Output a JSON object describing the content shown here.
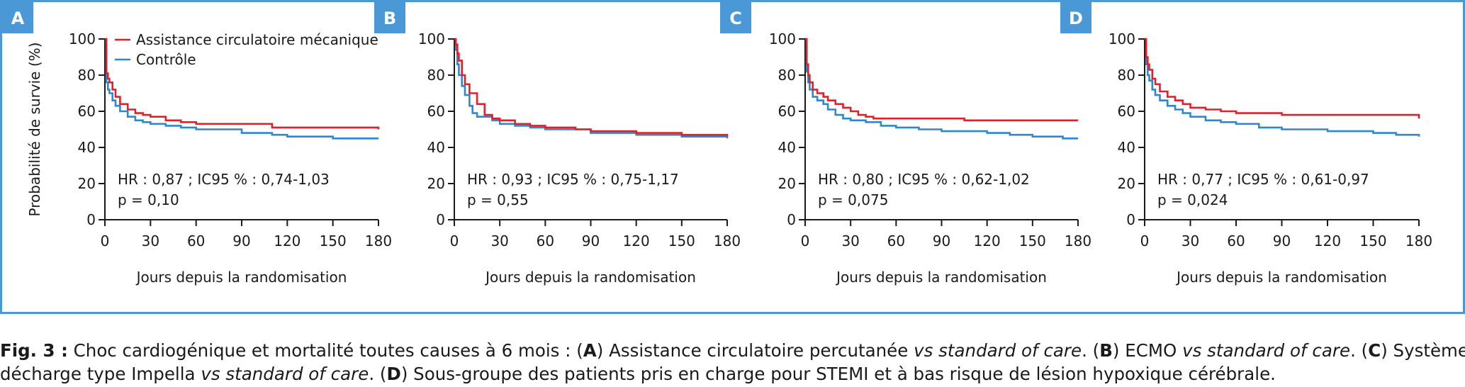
{
  "figure": {
    "frame_color": "#4a98d6",
    "colors": {
      "treatment": "#e1202a",
      "control": "#2e88cf",
      "letter_bg": "#4a98d6"
    }
  },
  "legend": {
    "treatment": "Assistance circulatoire mécanique",
    "control": "Contrôle"
  },
  "caption": {
    "fig_label": "Fig. 3 :",
    "line1_parts": [
      {
        "t": " Choc cardiogénique et mortalité toutes causes à 6 mois : (",
        "s": "n"
      },
      {
        "t": "A",
        "s": "b"
      },
      {
        "t": ") Assistance circulatoire percutanée ",
        "s": "n"
      },
      {
        "t": "vs standard of care",
        "s": "i"
      },
      {
        "t": ". (",
        "s": "n"
      },
      {
        "t": "B",
        "s": "b"
      },
      {
        "t": ") ECMO ",
        "s": "n"
      },
      {
        "t": "vs standard of care",
        "s": "i"
      },
      {
        "t": ". (",
        "s": "n"
      },
      {
        "t": "C",
        "s": "b"
      },
      {
        "t": ") Système de",
        "s": "n"
      }
    ],
    "line2_parts": [
      {
        "t": "décharge type Impella ",
        "s": "n"
      },
      {
        "t": "vs standard of care",
        "s": "i"
      },
      {
        "t": ". (",
        "s": "n"
      },
      {
        "t": "D",
        "s": "b"
      },
      {
        "t": ") Sous-groupe des patients pris en charge pour STEMI et à bas risque de lésion hypoxique cérébrale.",
        "s": "n"
      }
    ]
  },
  "chart_data": [
    {
      "type": "line",
      "panel": "A",
      "ylabel": "Probabilité de survie (%)",
      "xlabel": "Jours depuis la randomisation",
      "xticks": [
        0,
        30,
        60,
        90,
        120,
        150,
        180
      ],
      "yticks": [
        0,
        20,
        40,
        60,
        80,
        100
      ],
      "xlim": [
        0,
        180
      ],
      "ylim": [
        0,
        100
      ],
      "annotation": [
        "HR : 0,87 ; IC95 % : 0,74-1,03",
        "p = 0,10"
      ],
      "legend_placement": "top-right",
      "series": [
        {
          "name": "Assistance circulatoire mécanique",
          "color": "#e1202a",
          "x": [
            0,
            1,
            2,
            3,
            5,
            7,
            10,
            15,
            20,
            25,
            30,
            40,
            50,
            60,
            80,
            100,
            110,
            120,
            150,
            170,
            180
          ],
          "y": [
            100,
            81,
            78,
            76,
            72,
            68,
            64,
            61,
            59,
            58,
            57,
            55,
            54,
            53,
            53,
            53,
            51,
            51,
            51,
            51,
            50
          ]
        },
        {
          "name": "Contrôle",
          "color": "#2e88cf",
          "x": [
            0,
            1,
            2,
            3,
            5,
            7,
            10,
            15,
            20,
            25,
            30,
            40,
            50,
            60,
            90,
            110,
            120,
            135,
            150,
            180
          ],
          "y": [
            100,
            76,
            72,
            70,
            66,
            63,
            60,
            57,
            55,
            54,
            53,
            52,
            51,
            50,
            48,
            47,
            46,
            46,
            45,
            45
          ]
        }
      ]
    },
    {
      "type": "line",
      "panel": "B",
      "xlabel": "Jours depuis la randomisation",
      "xticks": [
        0,
        30,
        60,
        90,
        120,
        150,
        180
      ],
      "yticks": [
        0,
        20,
        40,
        60,
        80,
        100
      ],
      "xlim": [
        0,
        180
      ],
      "ylim": [
        0,
        100
      ],
      "annotation": [
        "HR : 0,93 ; IC95 % : 0,75-1,17",
        "p = 0,55"
      ],
      "series": [
        {
          "name": "Assistance circulatoire mécanique",
          "color": "#e1202a",
          "x": [
            0,
            1,
            2,
            3,
            5,
            7,
            10,
            15,
            20,
            25,
            30,
            40,
            50,
            60,
            80,
            90,
            120,
            150,
            180
          ],
          "y": [
            100,
            97,
            92,
            88,
            80,
            75,
            70,
            64,
            58,
            56,
            55,
            53,
            52,
            51,
            50,
            49,
            48,
            47,
            46
          ]
        },
        {
          "name": "Contrôle",
          "color": "#2e88cf",
          "x": [
            0,
            1,
            2,
            3,
            5,
            7,
            10,
            12,
            15,
            20,
            25,
            30,
            40,
            50,
            60,
            90,
            120,
            150,
            180
          ],
          "y": [
            100,
            94,
            86,
            80,
            74,
            69,
            63,
            59,
            57,
            57,
            55,
            53,
            52,
            51,
            50,
            48,
            47,
            46,
            45
          ]
        }
      ]
    },
    {
      "type": "line",
      "panel": "C",
      "xlabel": "Jours depuis la randomisation",
      "xticks": [
        0,
        30,
        60,
        90,
        120,
        150,
        180
      ],
      "yticks": [
        0,
        20,
        40,
        60,
        80,
        100
      ],
      "xlim": [
        0,
        180
      ],
      "ylim": [
        0,
        100
      ],
      "annotation": [
        "HR : 0,80 ; IC95 % : 0,62-1,02",
        "p = 0,075"
      ],
      "series": [
        {
          "name": "Assistance circulatoire mécanique",
          "color": "#e1202a",
          "x": [
            0,
            1,
            2,
            3,
            5,
            8,
            12,
            15,
            20,
            25,
            30,
            35,
            40,
            45,
            60,
            90,
            105,
            150,
            180
          ],
          "y": [
            100,
            86,
            80,
            76,
            72,
            70,
            68,
            66,
            64,
            62,
            60,
            58,
            57,
            56,
            56,
            56,
            55,
            55,
            55
          ]
        },
        {
          "name": "Contrôle",
          "color": "#2e88cf",
          "x": [
            0,
            1,
            2,
            3,
            5,
            8,
            12,
            15,
            20,
            25,
            30,
            40,
            50,
            60,
            75,
            90,
            120,
            135,
            150,
            170,
            180
          ],
          "y": [
            100,
            82,
            76,
            72,
            68,
            66,
            64,
            61,
            58,
            56,
            55,
            54,
            52,
            51,
            50,
            49,
            48,
            47,
            46,
            45,
            45
          ]
        }
      ]
    },
    {
      "type": "line",
      "panel": "D",
      "xlabel": "Jours depuis la randomisation",
      "xticks": [
        0,
        30,
        60,
        90,
        120,
        150,
        180
      ],
      "yticks": [
        0,
        20,
        40,
        60,
        80,
        100
      ],
      "xlim": [
        0,
        180
      ],
      "ylim": [
        0,
        100
      ],
      "annotation": [
        "HR : 0,77 ; IC95 % : 0,61-0,97",
        "p = 0,024"
      ],
      "series": [
        {
          "name": "Assistance circulatoire mécanique",
          "color": "#e1202a",
          "x": [
            0,
            1,
            2,
            3,
            5,
            7,
            10,
            15,
            20,
            25,
            30,
            40,
            50,
            60,
            90,
            120,
            150,
            175,
            180
          ],
          "y": [
            100,
            90,
            86,
            83,
            78,
            75,
            71,
            68,
            66,
            64,
            62,
            61,
            60,
            59,
            58,
            58,
            58,
            58,
            56
          ]
        },
        {
          "name": "Contrôle",
          "color": "#2e88cf",
          "x": [
            0,
            1,
            2,
            3,
            5,
            7,
            10,
            15,
            20,
            25,
            30,
            40,
            50,
            60,
            75,
            90,
            120,
            150,
            165,
            180
          ],
          "y": [
            100,
            86,
            80,
            77,
            72,
            69,
            66,
            63,
            61,
            59,
            57,
            55,
            54,
            53,
            51,
            50,
            49,
            48,
            47,
            46
          ]
        }
      ]
    }
  ]
}
